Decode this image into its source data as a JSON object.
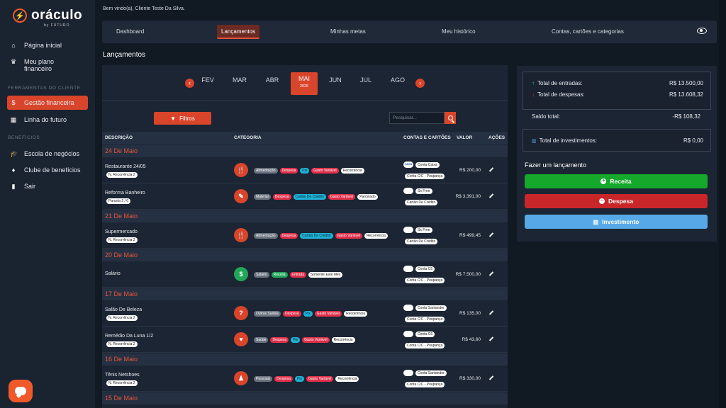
{
  "sidebar": {
    "logo_text": "oráculo",
    "logo_sub": "by FUTURO",
    "items": [
      {
        "label": "Página inicial",
        "icon": "home-icon"
      },
      {
        "label": "Meu plano financeiro",
        "icon": "crown-icon"
      }
    ],
    "section1": "FERRAMENTAS DO CLIENTE",
    "tools": [
      {
        "label": "Gestão financeira",
        "icon": "dollar-icon",
        "active": true
      },
      {
        "label": "Linha do futuro",
        "icon": "calendar-icon"
      }
    ],
    "section2": "BENEFÍCIOS",
    "benefits": [
      {
        "label": "Escola de negócios",
        "icon": "graduation-cap-icon"
      },
      {
        "label": "Clube de benefícios",
        "icon": "diamond-icon"
      },
      {
        "label": "Sair",
        "icon": "door-icon"
      }
    ]
  },
  "header": {
    "welcome": "Bem vindo(a), Cliente Teste Da Silva."
  },
  "topnav": {
    "tabs": [
      "Dashboard",
      "Lançamentos",
      "Minhas metas",
      "Meu histórico",
      "Contas, cartões e categorias"
    ],
    "active": "Lançamentos"
  },
  "page_title": "Lançamentos",
  "months": {
    "items": [
      "FEV",
      "MAR",
      "ABR",
      "MAI",
      "JUN",
      "JUL",
      "AGO"
    ],
    "selected": "MAI",
    "year": "2025"
  },
  "filters": {
    "button": "Filtros",
    "search_placeholder": "Pesquisar..."
  },
  "table": {
    "headers": [
      "DESCRIÇÃO",
      "CATEGORIA",
      "CONTAS E CARTÕES",
      "VALOR",
      "AÇÕES"
    ],
    "groups": [
      {
        "date": "24 De Maio",
        "rows": [
          {
            "desc": "Restaurante 24/05",
            "badge": "N. Recorrência 2",
            "icon": "🍴",
            "tags": [
              [
                "Alimentação",
                "gray"
              ],
              [
                "Despesa",
                "red"
              ],
              [
                "Pix",
                "cyan"
              ],
              [
                "Gasto Variável",
                "red"
              ],
              [
                "Recorrência",
                "white"
              ]
            ],
            "bank": "CAIXA",
            "acc": "Conta Caixa",
            "acc2": "Conta C/C - Poupança",
            "value": "R$ 200,00"
          },
          {
            "desc": "Reforma Banheiro",
            "badge": "Parcela 2 / 6",
            "icon": "✎",
            "tags": [
              [
                "Material",
                "gray"
              ],
              [
                "Despesa",
                "red"
              ],
              [
                "Cartão De Crédito",
                "cyan"
              ],
              [
                "Gasto Variável",
                "red"
              ],
              [
                "Parcelado",
                "white"
              ]
            ],
            "bank": "",
            "acc": "Sx Free",
            "acc2": "Cartão De Crédito",
            "value": "R$ 3.391,00"
          }
        ]
      },
      {
        "date": "21 De Maio",
        "rows": [
          {
            "desc": "Supermercado",
            "badge": "N. Recorrência 2",
            "icon": "🍴",
            "tags": [
              [
                "Alimentação",
                "gray"
              ],
              [
                "Despesa",
                "red"
              ],
              [
                "Cartão De Crédito",
                "cyan"
              ],
              [
                "Gasto Variável",
                "red"
              ],
              [
                "Recorrência",
                "white"
              ]
            ],
            "bank": "",
            "acc": "Sx Free",
            "acc2": "Cartão De Crédito",
            "value": "R$ 499,45"
          }
        ]
      },
      {
        "date": "20 De Maio",
        "rows": [
          {
            "desc": "Salário",
            "badge": "",
            "icon": "$",
            "green": true,
            "tags": [
              [
                "Salário",
                "gray"
              ],
              [
                "Receita",
                "green"
              ],
              [
                "Entrada",
                "red"
              ],
              [
                "Somente Este Mês",
                "white"
              ]
            ],
            "bank": "",
            "acc": "Conta C6",
            "acc2": "Conta C/C - Poupança",
            "value": "R$ 7.500,00"
          }
        ]
      },
      {
        "date": "17 De Maio",
        "rows": [
          {
            "desc": "Salão De Beleza",
            "badge": "N. Recorrência 2",
            "icon": "?",
            "tags": [
              [
                "Outras Saídas",
                "gray"
              ],
              [
                "Despesa",
                "red"
              ],
              [
                "Pix",
                "cyan"
              ],
              [
                "Gasto Variável",
                "red"
              ],
              [
                "Recorrência",
                "white"
              ]
            ],
            "bank": "",
            "acc": "Conta Santander",
            "acc2": "Conta C/C - Poupança",
            "value": "R$ 135,00"
          },
          {
            "desc": "Remédio Da Luna 1/2",
            "badge": "N. Recorrência 2",
            "icon": "♥",
            "tags": [
              [
                "Saúde",
                "gray"
              ],
              [
                "Despesa",
                "red"
              ],
              [
                "Pix",
                "cyan"
              ],
              [
                "Gasto Variável",
                "red"
              ],
              [
                "Recorrência",
                "white"
              ]
            ],
            "bank": "",
            "acc": "Conta C6",
            "acc2": "Conta C/C - Poupança",
            "value": "R$ 43,60"
          }
        ]
      },
      {
        "date": "16 De Maio",
        "rows": [
          {
            "desc": "Tênis Netshoes",
            "badge": "N. Recorrência 2",
            "icon": "♟",
            "tags": [
              [
                "Pessoais",
                "gray"
              ],
              [
                "Despesa",
                "red"
              ],
              [
                "Pix",
                "cyan"
              ],
              [
                "Gasto Variável",
                "red"
              ],
              [
                "Recorrência",
                "white"
              ]
            ],
            "bank": "",
            "acc": "Conta Santander",
            "acc2": "Conta C/C - Poupança",
            "value": "R$ 330,00"
          }
        ]
      },
      {
        "date": "15 De Maio",
        "rows": []
      }
    ]
  },
  "summary": {
    "entradas_label": "Total de entradas:",
    "entradas": "R$ 13.500,00",
    "despesas_label": "Total de despesas:",
    "despesas": "R$ 13.608,32",
    "saldo_label": "Saldo total:",
    "saldo": "-R$ 108,32",
    "invest_label": "Total de investimentos:",
    "invest": "R$ 0,00"
  },
  "actions": {
    "title": "Fazer um lançamento",
    "receita": "Receita",
    "despesa": "Despesa",
    "investimento": "Investimento"
  }
}
